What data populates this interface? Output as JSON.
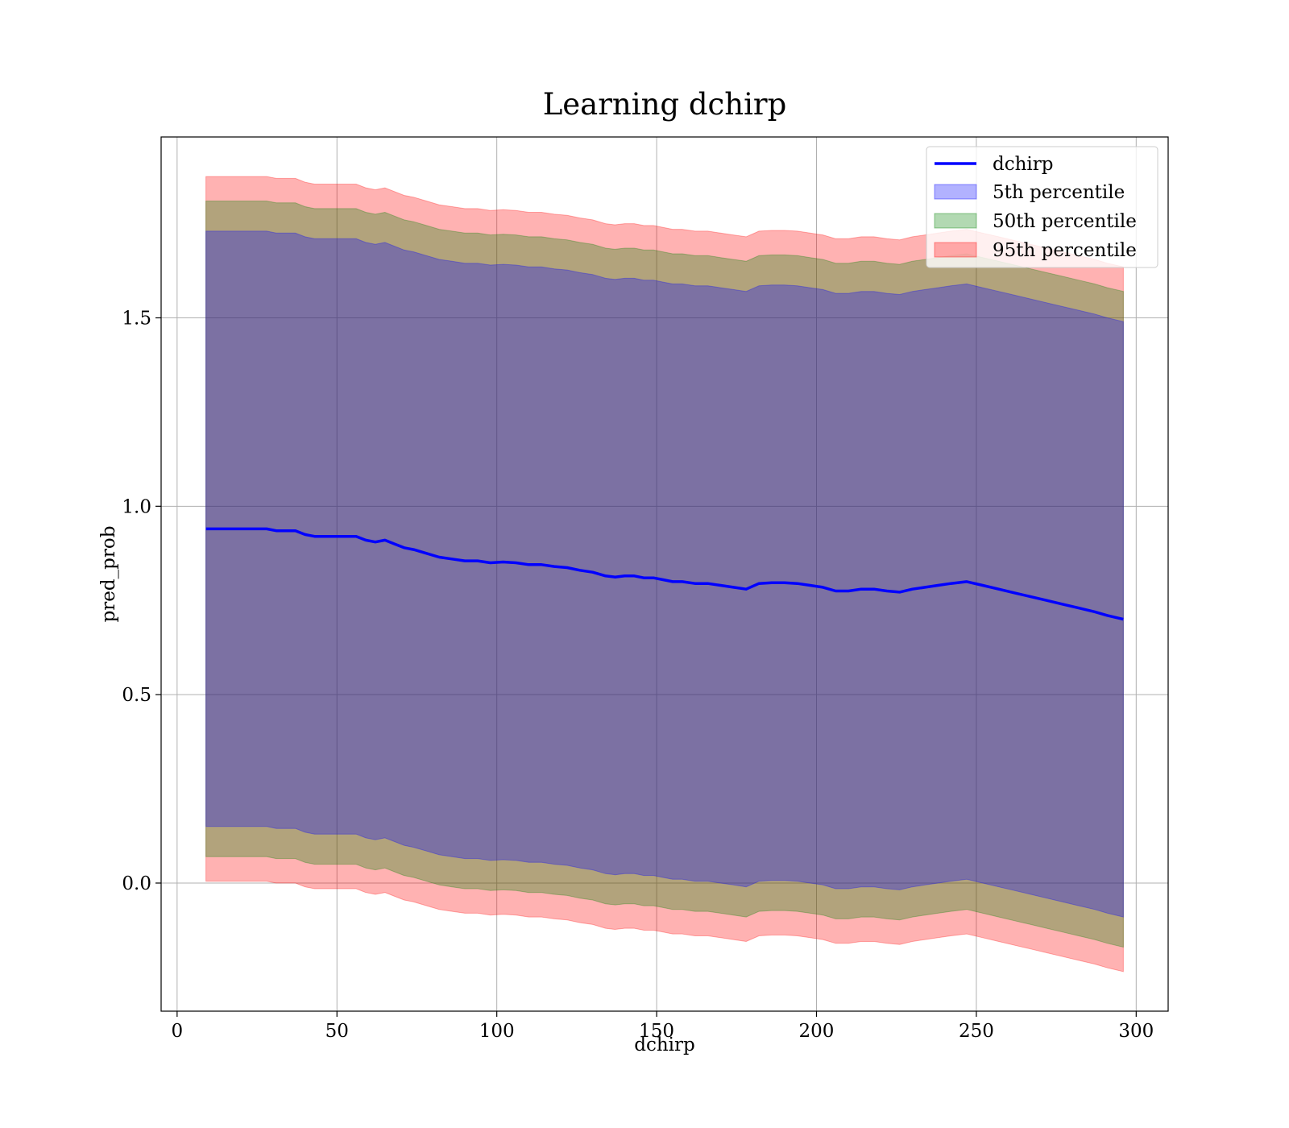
{
  "chart_data": {
    "type": "line",
    "title": "Learning dchirp",
    "xlabel": "dchirp",
    "ylabel": "pred_prob",
    "xlim": [
      -5,
      310
    ],
    "ylim": [
      -0.34,
      1.98
    ],
    "xticks": [
      0,
      50,
      100,
      150,
      200,
      250,
      300
    ],
    "xtick_labels": [
      "0",
      "50",
      "100",
      "150",
      "200",
      "250",
      "300"
    ],
    "yticks": [
      0.0,
      0.5,
      1.0,
      1.5
    ],
    "ytick_labels": [
      "0.0",
      "0.5",
      "1.0",
      "1.5"
    ],
    "grid": true,
    "legend_position": "top-right",
    "line": {
      "name": "dchirp",
      "color": "#0000ff",
      "x": [
        9,
        17,
        25,
        28,
        31,
        34,
        37,
        40,
        43,
        47,
        50,
        53,
        56,
        59,
        62,
        65,
        68,
        71,
        74,
        78,
        82,
        86,
        90,
        94,
        98,
        102,
        106,
        110,
        114,
        118,
        122,
        126,
        130,
        134,
        137,
        140,
        143,
        146,
        149,
        152,
        155,
        158,
        162,
        166,
        170,
        174,
        178,
        182,
        186,
        190,
        194,
        198,
        202,
        206,
        210,
        214,
        218,
        222,
        226,
        230,
        234,
        238,
        242,
        247,
        252,
        257,
        262,
        267,
        272,
        277,
        282,
        287,
        291,
        296
      ],
      "y": [
        0.94,
        0.94,
        0.94,
        0.94,
        0.935,
        0.935,
        0.935,
        0.925,
        0.92,
        0.92,
        0.92,
        0.92,
        0.92,
        0.91,
        0.905,
        0.91,
        0.9,
        0.89,
        0.885,
        0.875,
        0.865,
        0.86,
        0.855,
        0.855,
        0.85,
        0.852,
        0.85,
        0.845,
        0.845,
        0.84,
        0.837,
        0.83,
        0.825,
        0.815,
        0.812,
        0.815,
        0.815,
        0.81,
        0.81,
        0.805,
        0.8,
        0.8,
        0.795,
        0.795,
        0.79,
        0.785,
        0.78,
        0.795,
        0.797,
        0.797,
        0.795,
        0.79,
        0.785,
        0.775,
        0.775,
        0.78,
        0.78,
        0.775,
        0.772,
        0.78,
        0.785,
        0.79,
        0.795,
        0.8,
        0.79,
        0.78,
        0.77,
        0.76,
        0.75,
        0.74,
        0.73,
        0.72,
        0.71,
        0.7
      ]
    },
    "bands": [
      {
        "name": "5th percentile",
        "color": "#0000ff",
        "alpha": 0.3,
        "offset": 0.79
      },
      {
        "name": "50th percentile",
        "color": "#008000",
        "alpha": 0.3,
        "offset": 0.87
      },
      {
        "name": "95th percentile",
        "color": "#ff0000",
        "alpha": 0.3,
        "offset": 0.935
      }
    ]
  }
}
